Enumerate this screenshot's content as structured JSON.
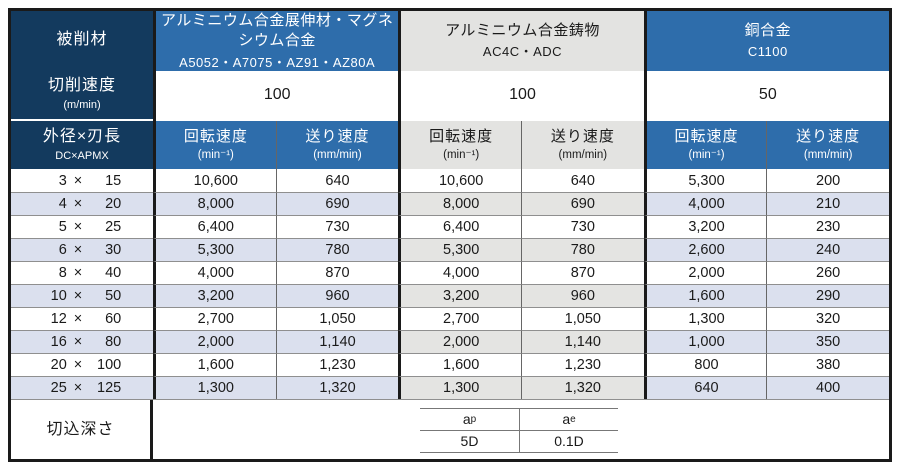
{
  "times": "×",
  "colors": {
    "navy": "#133a5e",
    "blue": "#2e6dab",
    "header_gray": "#e3e3e1",
    "alt_row_blue": "#dbe0ee",
    "alt_row_gray": "#e4e4e2",
    "border_black": "#1a1a1a"
  },
  "header": {
    "workpiece_label": "被削材",
    "cutting_speed_label": "切削速度",
    "cutting_speed_unit": "(m/min)",
    "size_label": "外径×刃長",
    "size_code": "DC×APMX",
    "rotation_label": "回転速度",
    "rotation_unit": "(min⁻¹)",
    "feed_label": "送り速度",
    "feed_unit": "(mm/min)"
  },
  "materials": [
    {
      "name": "アルミニウム合金展伸材・マグネシウム合金",
      "grades": "A5052・A7075・AZ91・AZ80A",
      "cutting_speed": "100"
    },
    {
      "name": "アルミニウム合金鋳物",
      "grades": "AC4C・ADC",
      "cutting_speed": "100"
    },
    {
      "name": "銅合金",
      "grades": "C1100",
      "cutting_speed": "50"
    }
  ],
  "rows": [
    {
      "dc": "3",
      "apmx": "15",
      "v": [
        "10,600",
        "640",
        "10,600",
        "640",
        "5,300",
        "200"
      ]
    },
    {
      "dc": "4",
      "apmx": "20",
      "v": [
        "8,000",
        "690",
        "8,000",
        "690",
        "4,000",
        "210"
      ]
    },
    {
      "dc": "5",
      "apmx": "25",
      "v": [
        "6,400",
        "730",
        "6,400",
        "730",
        "3,200",
        "230"
      ]
    },
    {
      "dc": "6",
      "apmx": "30",
      "v": [
        "5,300",
        "780",
        "5,300",
        "780",
        "2,600",
        "240"
      ]
    },
    {
      "dc": "8",
      "apmx": "40",
      "v": [
        "4,000",
        "870",
        "4,000",
        "870",
        "2,000",
        "260"
      ]
    },
    {
      "dc": "10",
      "apmx": "50",
      "v": [
        "3,200",
        "960",
        "3,200",
        "960",
        "1,600",
        "290"
      ]
    },
    {
      "dc": "12",
      "apmx": "60",
      "v": [
        "2,700",
        "1,050",
        "2,700",
        "1,050",
        "1,300",
        "320"
      ]
    },
    {
      "dc": "16",
      "apmx": "80",
      "v": [
        "2,000",
        "1,140",
        "2,000",
        "1,140",
        "1,000",
        "350"
      ]
    },
    {
      "dc": "20",
      "apmx": "100",
      "v": [
        "1,600",
        "1,230",
        "1,600",
        "1,230",
        "800",
        "380"
      ]
    },
    {
      "dc": "25",
      "apmx": "125",
      "v": [
        "1,300",
        "1,320",
        "1,300",
        "1,320",
        "640",
        "400"
      ]
    }
  ],
  "depth": {
    "label": "切込深さ",
    "ap_base": "a",
    "ap_sub": "p",
    "ap_value": "5D",
    "ae_base": "a",
    "ae_sub": "e",
    "ae_value": "0.1D"
  }
}
